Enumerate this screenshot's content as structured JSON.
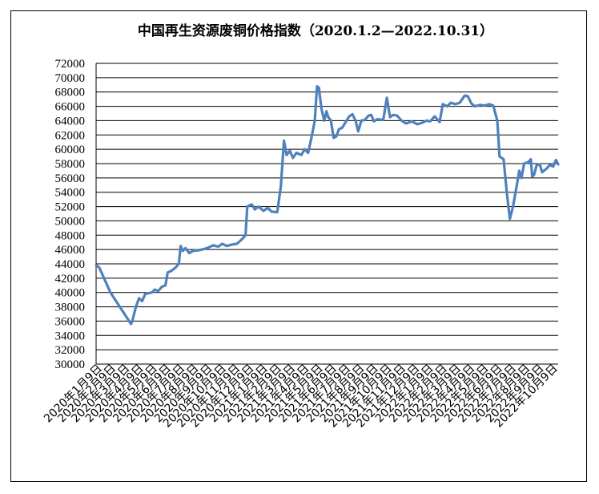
{
  "chart_data": {
    "type": "line",
    "title": "中国再生资源废铜价格指数（2020.1.2—2022.10.31）",
    "xlabel": "",
    "ylabel": "",
    "ylim": [
      30000,
      72000
    ],
    "y_ticks": [
      30000,
      32000,
      34000,
      36000,
      38000,
      40000,
      42000,
      44000,
      46000,
      48000,
      50000,
      52000,
      54000,
      56000,
      58000,
      60000,
      62000,
      64000,
      66000,
      68000,
      70000,
      72000
    ],
    "grid": true,
    "x_tick_labels": [
      "2020年1月9日",
      "2020年2月9日",
      "2020年3月9日",
      "2020年4月9日",
      "2020年5月9日",
      "2020年6月9日",
      "2020年7月9日",
      "2020年8月9日",
      "2020年9月9日",
      "2020年10月9日",
      "2020年11月9日",
      "2020年12月9日",
      "2021年1月9日",
      "2021年2月9日",
      "2021年3月9日",
      "2021年4月9日",
      "2021年5月9日",
      "2021年6月9日",
      "2021年7月9日",
      "2021年8月9日",
      "2021年9月9日",
      "2021年10月9日",
      "2021年11月9日",
      "2021年12月9日",
      "2022年1月9日",
      "2022年2月9日",
      "2022年3月9日",
      "2022年4月9日",
      "2022年5月9日",
      "2022年6月9日",
      "2022年7月9日",
      "2022年8月9日",
      "2022年9月9日",
      "2022年10月9日"
    ],
    "x_range": [
      "2020-01-02",
      "2022-10-31"
    ],
    "series": [
      {
        "name": "",
        "color": "#4f81bd",
        "points": [
          [
            "2020-01-02",
            43800
          ],
          [
            "2020-01-09",
            43500
          ],
          [
            "2020-02-03",
            40000
          ],
          [
            "2020-03-20",
            35600
          ],
          [
            "2020-03-23",
            36000
          ],
          [
            "2020-03-31",
            38000
          ],
          [
            "2020-04-07",
            39200
          ],
          [
            "2020-04-14",
            38800
          ],
          [
            "2020-04-21",
            39800
          ],
          [
            "2020-05-06",
            40000
          ],
          [
            "2020-05-12",
            40400
          ],
          [
            "2020-05-20",
            40200
          ],
          [
            "2020-05-28",
            40800
          ],
          [
            "2020-06-05",
            41000
          ],
          [
            "2020-06-10",
            42800
          ],
          [
            "2020-06-18",
            43000
          ],
          [
            "2020-06-28",
            43500
          ],
          [
            "2020-07-05",
            44000
          ],
          [
            "2020-07-09",
            46500
          ],
          [
            "2020-07-14",
            45800
          ],
          [
            "2020-07-20",
            46200
          ],
          [
            "2020-07-28",
            45500
          ],
          [
            "2020-08-05",
            45800
          ],
          [
            "2020-08-18",
            45900
          ],
          [
            "2020-09-01",
            46100
          ],
          [
            "2020-09-10",
            46300
          ],
          [
            "2020-09-20",
            46600
          ],
          [
            "2020-10-01",
            46400
          ],
          [
            "2020-10-10",
            46800
          ],
          [
            "2020-10-20",
            46500
          ],
          [
            "2020-11-01",
            46700
          ],
          [
            "2020-11-12",
            46800
          ],
          [
            "2020-11-24",
            47500
          ],
          [
            "2020-12-01",
            48000
          ],
          [
            "2020-12-05",
            52000
          ],
          [
            "2020-12-15",
            52300
          ],
          [
            "2020-12-22",
            51600
          ],
          [
            "2020-12-30",
            52000
          ],
          [
            "2021-01-10",
            51400
          ],
          [
            "2021-01-20",
            51800
          ],
          [
            "2021-01-28",
            51300
          ],
          [
            "2021-02-10",
            51200
          ],
          [
            "2021-02-18",
            54800
          ],
          [
            "2021-02-25",
            61200
          ],
          [
            "2021-03-03",
            59200
          ],
          [
            "2021-03-10",
            59800
          ],
          [
            "2021-03-17",
            58800
          ],
          [
            "2021-03-25",
            59500
          ],
          [
            "2021-04-05",
            59200
          ],
          [
            "2021-04-12",
            60000
          ],
          [
            "2021-04-20",
            59500
          ],
          [
            "2021-04-27",
            61500
          ],
          [
            "2021-05-05",
            64000
          ],
          [
            "2021-05-10",
            68800
          ],
          [
            "2021-05-14",
            68600
          ],
          [
            "2021-05-20",
            65600
          ],
          [
            "2021-05-26",
            64000
          ],
          [
            "2021-05-31",
            65300
          ],
          [
            "2021-06-04",
            64500
          ],
          [
            "2021-06-10",
            64000
          ],
          [
            "2021-06-16",
            61600
          ],
          [
            "2021-06-22",
            61800
          ],
          [
            "2021-06-28",
            62800
          ],
          [
            "2021-07-05",
            63000
          ],
          [
            "2021-07-13",
            63800
          ],
          [
            "2021-07-21",
            64600
          ],
          [
            "2021-07-28",
            64900
          ],
          [
            "2021-08-04",
            64000
          ],
          [
            "2021-08-10",
            62500
          ],
          [
            "2021-08-17",
            64000
          ],
          [
            "2021-08-25",
            64100
          ],
          [
            "2021-09-02",
            64700
          ],
          [
            "2021-09-08",
            64800
          ],
          [
            "2021-09-14",
            63900
          ],
          [
            "2021-09-22",
            64200
          ],
          [
            "2021-10-05",
            64100
          ],
          [
            "2021-10-13",
            67200
          ],
          [
            "2021-10-20",
            64500
          ],
          [
            "2021-10-27",
            64800
          ],
          [
            "2021-11-05",
            64700
          ],
          [
            "2021-11-15",
            64000
          ],
          [
            "2021-11-25",
            63600
          ],
          [
            "2021-12-08",
            63900
          ],
          [
            "2021-12-20",
            63500
          ],
          [
            "2021-12-31",
            63700
          ],
          [
            "2022-01-10",
            64000
          ],
          [
            "2022-01-18",
            63900
          ],
          [
            "2022-01-28",
            64600
          ],
          [
            "2022-02-08",
            63800
          ],
          [
            "2022-02-15",
            66300
          ],
          [
            "2022-02-25",
            66000
          ],
          [
            "2022-03-05",
            66500
          ],
          [
            "2022-03-15",
            66300
          ],
          [
            "2022-03-25",
            66500
          ],
          [
            "2022-04-05",
            67500
          ],
          [
            "2022-04-12",
            67400
          ],
          [
            "2022-04-20",
            66400
          ],
          [
            "2022-04-28",
            66000
          ],
          [
            "2022-05-10",
            66200
          ],
          [
            "2022-05-20",
            66100
          ],
          [
            "2022-05-30",
            66300
          ],
          [
            "2022-06-08",
            66100
          ],
          [
            "2022-06-17",
            64000
          ],
          [
            "2022-06-22",
            59000
          ],
          [
            "2022-07-01",
            58600
          ],
          [
            "2022-07-08",
            54000
          ],
          [
            "2022-07-15",
            50300
          ],
          [
            "2022-07-22",
            52000
          ],
          [
            "2022-08-01",
            55500
          ],
          [
            "2022-08-05",
            57000
          ],
          [
            "2022-08-10",
            56000
          ],
          [
            "2022-08-16",
            58000
          ],
          [
            "2022-08-25",
            58200
          ],
          [
            "2022-08-31",
            58600
          ],
          [
            "2022-09-03",
            56200
          ],
          [
            "2022-09-07",
            56400
          ],
          [
            "2022-09-13",
            57800
          ],
          [
            "2022-09-20",
            57900
          ],
          [
            "2022-09-25",
            56800
          ],
          [
            "2022-10-05",
            57300
          ],
          [
            "2022-10-12",
            57800
          ],
          [
            "2022-10-20",
            57600
          ],
          [
            "2022-10-26",
            58500
          ],
          [
            "2022-10-31",
            57900
          ]
        ]
      }
    ]
  }
}
